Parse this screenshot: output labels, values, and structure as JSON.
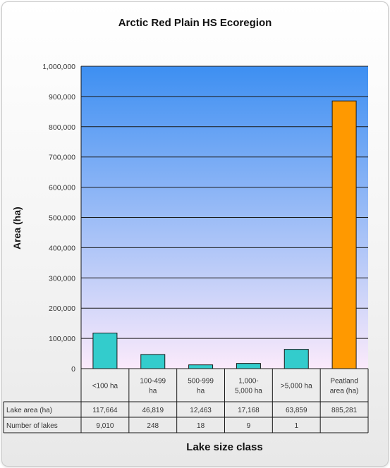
{
  "chart_data": {
    "type": "bar",
    "title": "Arctic Red Plain HS Ecoregion",
    "xlabel": "Lake size class",
    "ylabel": "Area (ha)",
    "ylim": [
      0,
      1000000
    ],
    "y_ticks": [
      "0",
      "100,000",
      "200,000",
      "300,000",
      "400,000",
      "500,000",
      "600,000",
      "700,000",
      "800,000",
      "900,000",
      "1,000,000"
    ],
    "grid": true,
    "categories": [
      [
        "<100 ha"
      ],
      [
        "100-499",
        "ha"
      ],
      [
        "500-999",
        "ha"
      ],
      [
        "1,000-",
        "5,000 ha"
      ],
      [
        ">5,000 ha"
      ],
      [
        "Peatland",
        "area (ha)"
      ]
    ],
    "values": [
      117664,
      46819,
      12463,
      17168,
      63859,
      885281
    ],
    "bar_colors": [
      "#33cccc",
      "#33cccc",
      "#33cccc",
      "#33cccc",
      "#33cccc",
      "#ff9900"
    ],
    "plot_background": {
      "top": "#3d8ff2",
      "bottom": "#fbeafb"
    },
    "table": {
      "rows": [
        {
          "label": "Lake area (ha)",
          "cells": [
            "117,664",
            "46,819",
            "12,463",
            "17,168",
            "63,859",
            "885,281"
          ]
        },
        {
          "label": "Number of lakes",
          "cells": [
            "9,010",
            "248",
            "18",
            "9",
            "1",
            ""
          ]
        }
      ]
    }
  }
}
